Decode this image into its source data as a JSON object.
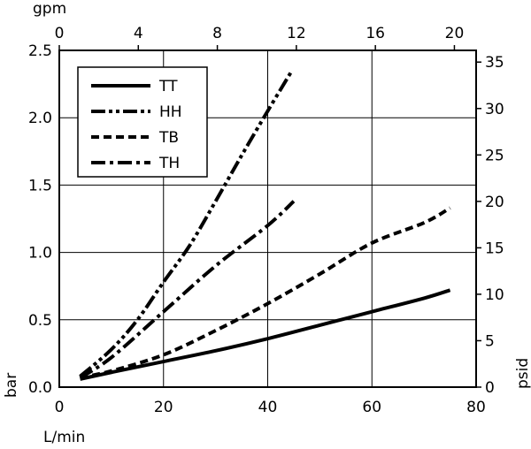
{
  "chart_data": {
    "type": "line",
    "title": "",
    "xlabel_bottom": "L/min",
    "xlabel_top": "gpm",
    "ylabel_left": "bar",
    "ylabel_right": "psid",
    "xlim": [
      0,
      80
    ],
    "ylim": [
      0,
      2.5
    ],
    "x2lim": [
      0,
      21.1
    ],
    "y2lim": [
      0,
      36.26
    ],
    "x_ticks": [
      "0",
      "20",
      "40",
      "60",
      "80"
    ],
    "y_ticks": [
      "0.0",
      "0.5",
      "1.0",
      "1.5",
      "2.0",
      "2.5"
    ],
    "x2_ticks": [
      "0",
      "4",
      "8",
      "12",
      "16",
      "20"
    ],
    "y2_ticks": [
      "0",
      "5",
      "10",
      "15",
      "20",
      "25",
      "30",
      "35"
    ],
    "grid": true,
    "legend_position": "top-left",
    "series": [
      {
        "name": "TT",
        "style": "solid",
        "x": [
          4,
          10,
          20,
          30,
          40,
          50,
          60,
          70,
          75
        ],
        "y": [
          0.06,
          0.11,
          0.19,
          0.27,
          0.36,
          0.46,
          0.56,
          0.66,
          0.72
        ]
      },
      {
        "name": "HH",
        "style": "dash-dot-dot",
        "x": [
          4,
          10,
          15,
          20,
          25,
          30,
          35,
          40,
          44.5
        ],
        "y": [
          0.08,
          0.28,
          0.5,
          0.78,
          1.05,
          1.38,
          1.72,
          2.05,
          2.34
        ]
      },
      {
        "name": "TB",
        "style": "dashed",
        "x": [
          4,
          10,
          20,
          30,
          40,
          50,
          60,
          70,
          75
        ],
        "y": [
          0.07,
          0.12,
          0.24,
          0.42,
          0.62,
          0.84,
          1.07,
          1.22,
          1.33
        ]
      },
      {
        "name": "TH",
        "style": "dash-dot",
        "x": [
          4,
          10,
          20,
          30,
          40,
          45
        ],
        "y": [
          0.07,
          0.22,
          0.56,
          0.9,
          1.2,
          1.38
        ]
      }
    ]
  }
}
